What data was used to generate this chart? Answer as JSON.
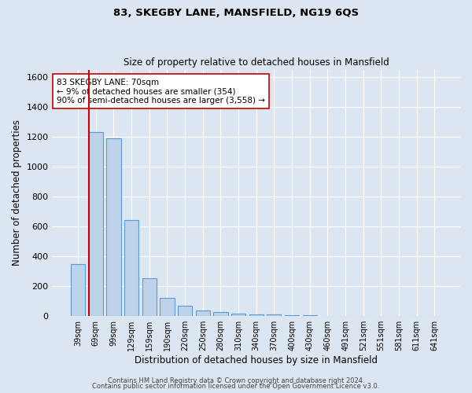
{
  "title": "83, SKEGBY LANE, MANSFIELD, NG19 6QS",
  "subtitle": "Size of property relative to detached houses in Mansfield",
  "xlabel": "Distribution of detached houses by size in Mansfield",
  "ylabel": "Number of detached properties",
  "footer_line1": "Contains HM Land Registry data © Crown copyright and database right 2024.",
  "footer_line2": "Contains public sector information licensed under the Open Government Licence v3.0.",
  "categories": [
    "39sqm",
    "69sqm",
    "99sqm",
    "129sqm",
    "159sqm",
    "190sqm",
    "220sqm",
    "250sqm",
    "280sqm",
    "310sqm",
    "340sqm",
    "370sqm",
    "400sqm",
    "430sqm",
    "460sqm",
    "491sqm",
    "521sqm",
    "551sqm",
    "581sqm",
    "611sqm",
    "641sqm"
  ],
  "values": [
    350,
    1230,
    1190,
    645,
    255,
    120,
    70,
    38,
    25,
    15,
    12,
    10,
    8,
    6,
    2,
    1,
    1,
    0,
    0,
    0,
    0
  ],
  "bar_color": "#bed3ea",
  "bar_edge_color": "#5b9bd5",
  "bg_color": "#dce6f1",
  "grid_color": "#ffffff",
  "property_line_color": "#cc0000",
  "property_line_index": 1,
  "annotation_text": "83 SKEGBY LANE: 70sqm\n← 9% of detached houses are smaller (354)\n90% of semi-detached houses are larger (3,558) →",
  "annotation_box_color": "#ffffff",
  "annotation_box_edge": "#cc0000",
  "ylim": [
    0,
    1650
  ],
  "yticks": [
    0,
    200,
    400,
    600,
    800,
    1000,
    1200,
    1400,
    1600
  ]
}
